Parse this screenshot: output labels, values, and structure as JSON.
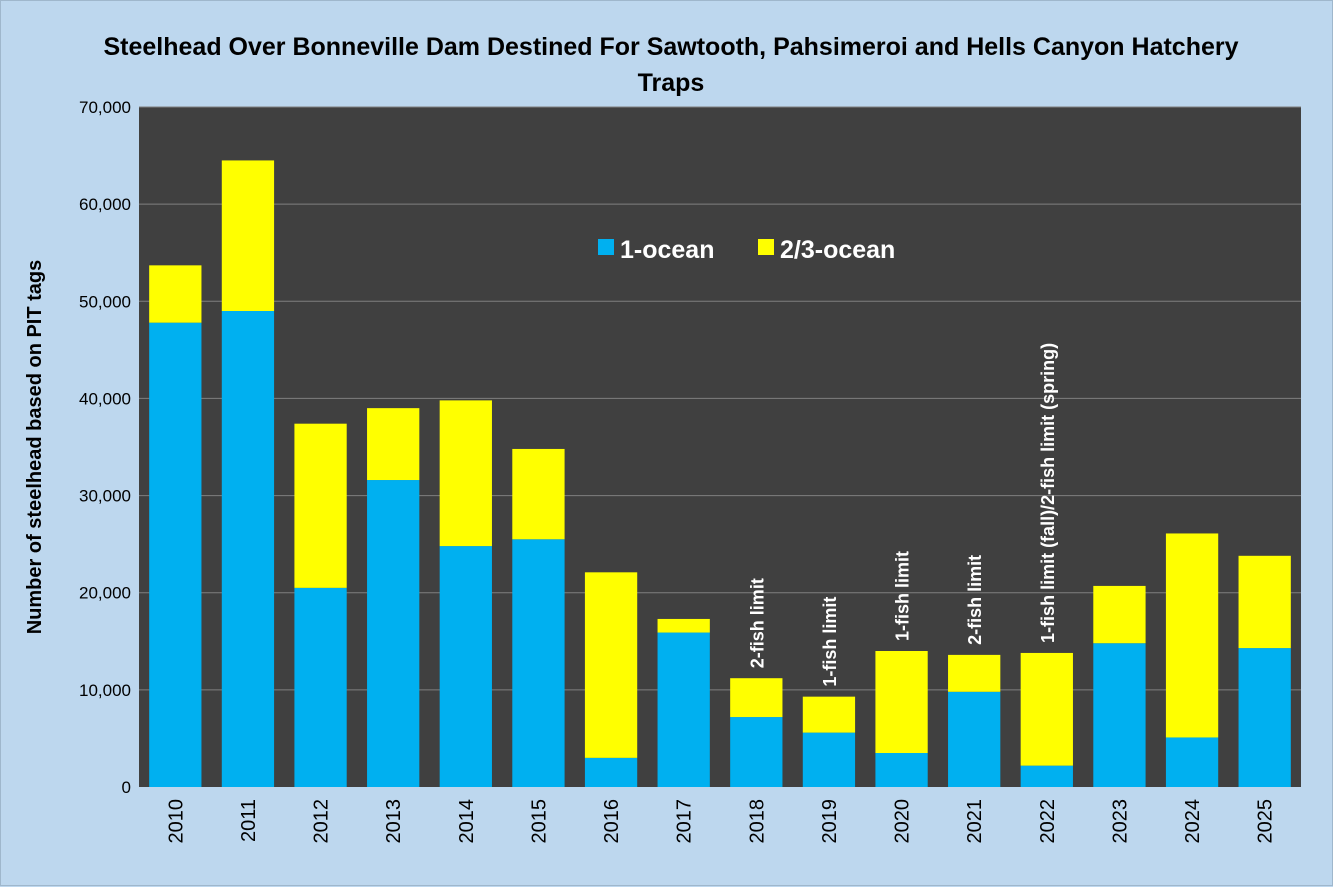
{
  "chart_data": {
    "type": "bar",
    "stacked": true,
    "title": "Steelhead Over Bonneville Dam Destined For Sawtooth, Pahsimeroi and Hells Canyon Hatchery Traps",
    "xlabel": "",
    "ylabel": "Number of steelhead based on PIT tags",
    "ylim": [
      0,
      70000
    ],
    "yticks": [
      "0",
      "10,000",
      "20,000",
      "30,000",
      "40,000",
      "50,000",
      "60,000",
      "70,000"
    ],
    "grid": true,
    "legend_position": "top-center",
    "categories": [
      "2010",
      "2011",
      "2012",
      "2013",
      "2014",
      "2015",
      "2016",
      "2017",
      "2018",
      "2019",
      "2020",
      "2021",
      "2022",
      "2023",
      "2024",
      "2025"
    ],
    "series": [
      {
        "name": "1-ocean",
        "color": "#00b0f0",
        "values": [
          47800,
          49000,
          20500,
          31600,
          24800,
          25500,
          3000,
          15900,
          7200,
          5600,
          3500,
          9800,
          2200,
          14800,
          5100,
          14300
        ]
      },
      {
        "name": "2/3-ocean",
        "color": "#ffff00",
        "values": [
          5900,
          15500,
          16900,
          7400,
          15000,
          9300,
          19100,
          1400,
          4000,
          3700,
          10500,
          3800,
          11600,
          5900,
          21000,
          9500
        ]
      }
    ],
    "annotations": [
      {
        "category": "2018",
        "text": "2-fish limit"
      },
      {
        "category": "2019",
        "text": "1-fish limit"
      },
      {
        "category": "2020",
        "text": "1-fish limit"
      },
      {
        "category": "2021",
        "text": "2-fish limit"
      },
      {
        "category": "2022",
        "text": "1-fish limit (fall)/2-fish limit (spring)"
      }
    ],
    "colors": {
      "background": "#bdd7ee",
      "plot_area": "#404040",
      "gridline": "#7f7f7f"
    }
  }
}
